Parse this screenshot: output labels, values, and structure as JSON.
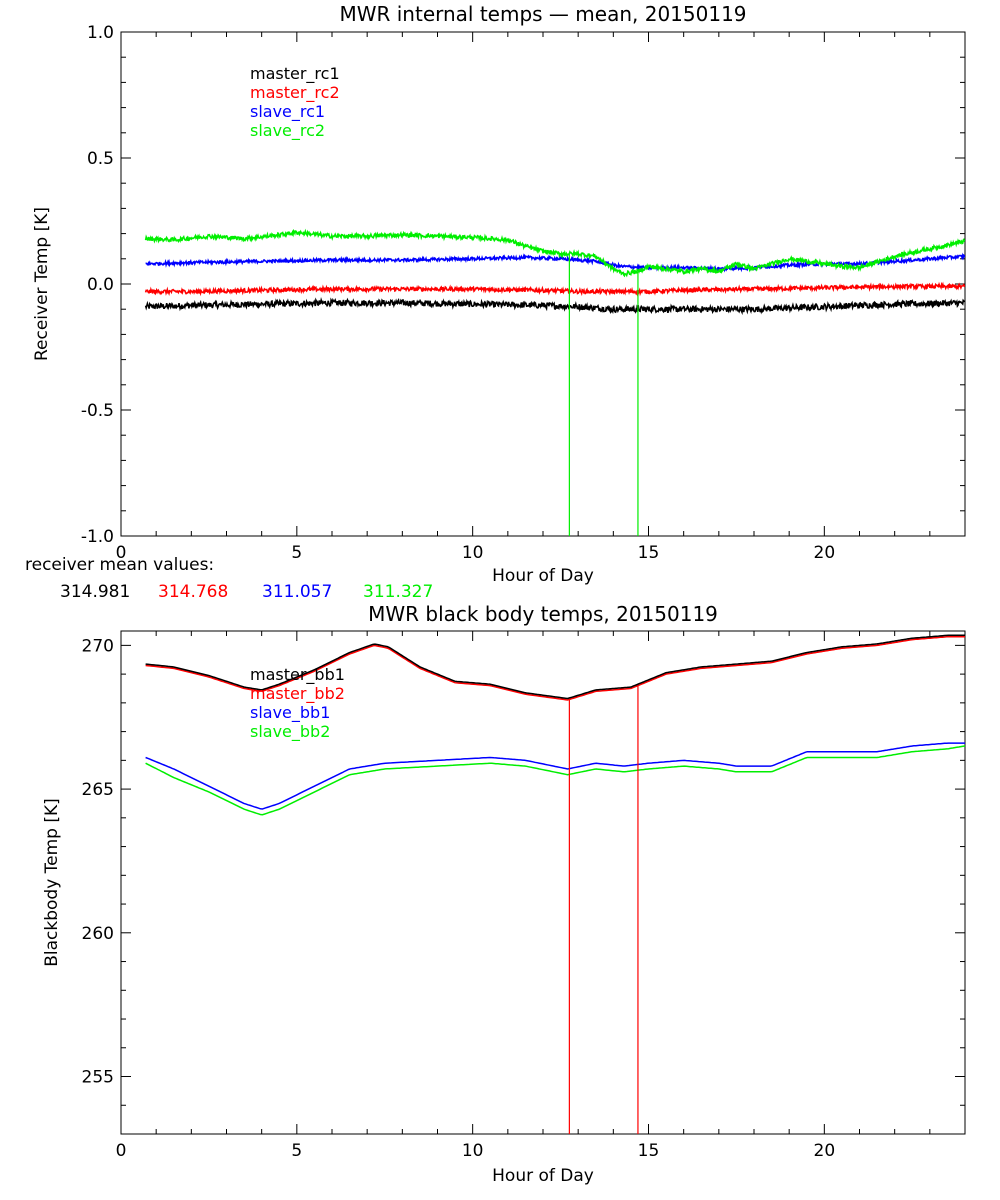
{
  "chart_data": [
    {
      "type": "line",
      "title": "MWR internal temps — mean, 20150119",
      "xlabel": "Hour of Day",
      "ylabel": "Receiver Temp [K]",
      "xlim": [
        0,
        24
      ],
      "ylim": [
        -1.0,
        1.0
      ],
      "xticks": [
        "0",
        "5",
        "10",
        "15",
        "20"
      ],
      "yticks": [
        "1.0",
        "0.5",
        "0.0",
        "-0.5",
        "-1.0"
      ],
      "legend_position": "top-left",
      "series": [
        {
          "name": "master_rc1",
          "color": "#000000",
          "noise": 0.012,
          "spikes": [],
          "x": [
            0.7,
            2,
            4,
            6,
            8,
            10,
            12,
            13,
            14,
            15,
            16,
            18,
            20,
            22,
            24
          ],
          "y": [
            -0.09,
            -0.085,
            -0.08,
            -0.075,
            -0.075,
            -0.08,
            -0.085,
            -0.09,
            -0.1,
            -0.1,
            -0.1,
            -0.1,
            -0.09,
            -0.08,
            -0.075
          ]
        },
        {
          "name": "master_rc2",
          "color": "#ff0000",
          "noise": 0.008,
          "spikes": [],
          "x": [
            0.7,
            2,
            4,
            6,
            8,
            10,
            12,
            13,
            14,
            15,
            16,
            18,
            20,
            22,
            24
          ],
          "y": [
            -0.03,
            -0.03,
            -0.025,
            -0.02,
            -0.02,
            -0.02,
            -0.025,
            -0.03,
            -0.03,
            -0.03,
            -0.025,
            -0.02,
            -0.015,
            -0.01,
            -0.01
          ]
        },
        {
          "name": "slave_rc1",
          "color": "#0000ff",
          "noise": 0.006,
          "spikes": [],
          "x": [
            0.7,
            2,
            4,
            6,
            8,
            10,
            11.5,
            12.5,
            13.5,
            14.2,
            15,
            16,
            17,
            18,
            19,
            20,
            21,
            22,
            23,
            24
          ],
          "y": [
            0.08,
            0.085,
            0.09,
            0.095,
            0.095,
            0.1,
            0.105,
            0.1,
            0.09,
            0.07,
            0.065,
            0.065,
            0.06,
            0.065,
            0.075,
            0.08,
            0.08,
            0.09,
            0.1,
            0.11
          ]
        },
        {
          "name": "slave_rc2",
          "color": "#00ee00",
          "noise": 0.008,
          "spikes": [
            12.75,
            14.7
          ],
          "x": [
            0.7,
            1.5,
            2.5,
            3.5,
            4.5,
            5.0,
            6,
            7,
            8,
            9,
            10,
            11,
            11.5,
            12,
            12.5,
            13,
            13.5,
            14.0,
            14.3,
            14.7,
            15,
            15.5,
            16,
            16.5,
            17,
            17.5,
            18,
            18.5,
            19,
            19.5,
            20,
            20.5,
            21,
            22,
            23,
            24
          ],
          "y": [
            0.18,
            0.175,
            0.19,
            0.18,
            0.195,
            0.205,
            0.19,
            0.19,
            0.195,
            0.19,
            0.185,
            0.175,
            0.15,
            0.13,
            0.12,
            0.12,
            0.11,
            0.06,
            0.04,
            0.05,
            0.07,
            0.06,
            0.05,
            0.06,
            0.05,
            0.08,
            0.06,
            0.08,
            0.1,
            0.09,
            0.08,
            0.07,
            0.065,
            0.11,
            0.14,
            0.17
          ]
        }
      ],
      "note_label": "receiver mean values:",
      "note_values": [
        {
          "text": "314.981",
          "color": "#000000"
        },
        {
          "text": "314.768",
          "color": "#ff0000"
        },
        {
          "text": "311.057",
          "color": "#0000ff"
        },
        {
          "text": "311.327",
          "color": "#00ee00"
        }
      ]
    },
    {
      "type": "line",
      "title": "MWR black body temps, 20150119",
      "xlabel": "Hour of Day",
      "ylabel": "Blackbody Temp [K]",
      "xlim": [
        0,
        24
      ],
      "ylim": [
        253,
        270.5
      ],
      "xticks": [
        "0",
        "5",
        "10",
        "15",
        "20"
      ],
      "yticks": [
        "270",
        "265",
        "260",
        "255"
      ],
      "legend_position": "top-left",
      "series": [
        {
          "name": "slave_bb1",
          "color": "#0000ff",
          "noise": 0,
          "spikes": [],
          "x": [
            0.7,
            1.5,
            2.5,
            3.5,
            4.0,
            4.5,
            5.5,
            6.5,
            7.5,
            9,
            10.5,
            11.5,
            12.7,
            13.5,
            14.3,
            15,
            16,
            17,
            17.5,
            18.5,
            19.5,
            20.5,
            21.5,
            22.5,
            23.5,
            24
          ],
          "y": [
            266.1,
            265.7,
            265.1,
            264.5,
            264.3,
            264.5,
            265.1,
            265.7,
            265.9,
            266.0,
            266.1,
            266.0,
            265.7,
            265.9,
            265.8,
            265.9,
            266.0,
            265.9,
            265.8,
            265.8,
            266.3,
            266.3,
            266.3,
            266.5,
            266.6,
            266.6
          ]
        },
        {
          "name": "slave_bb2",
          "color": "#00ee00",
          "noise": 0,
          "spikes": [],
          "x": [
            0.7,
            1.5,
            2.5,
            3.5,
            4.0,
            4.5,
            5.5,
            6.5,
            7.5,
            9,
            10.5,
            11.5,
            12.7,
            13.5,
            14.3,
            15,
            16,
            17,
            17.5,
            18.5,
            19.5,
            20.5,
            21.5,
            22.5,
            23.5,
            24
          ],
          "y": [
            265.9,
            265.4,
            264.9,
            264.3,
            264.1,
            264.3,
            264.9,
            265.5,
            265.7,
            265.8,
            265.9,
            265.8,
            265.5,
            265.7,
            265.6,
            265.7,
            265.8,
            265.7,
            265.6,
            265.6,
            266.1,
            266.1,
            266.1,
            266.3,
            266.4,
            266.5
          ]
        },
        {
          "name": "master_bb2",
          "color": "#ff0000",
          "noise": 0,
          "spikes": [
            12.75,
            14.7
          ],
          "x": [
            0.7,
            1.5,
            2.5,
            3.5,
            4.0,
            4.5,
            5.5,
            6.5,
            7.2,
            7.6,
            8.5,
            9.5,
            10.5,
            11.5,
            12.7,
            13.5,
            14.5,
            15.5,
            16.5,
            17.5,
            18.5,
            19.5,
            20.5,
            21.5,
            22.5,
            23.5,
            24
          ],
          "y": [
            269.3,
            269.2,
            268.9,
            268.5,
            268.4,
            268.6,
            269.1,
            269.7,
            270.0,
            269.9,
            269.2,
            268.7,
            268.6,
            268.3,
            268.1,
            268.4,
            268.5,
            269.0,
            269.2,
            269.3,
            269.4,
            269.7,
            269.9,
            270.0,
            270.2,
            270.3,
            270.3
          ]
        },
        {
          "name": "master_bb1",
          "color": "#000000",
          "noise": 0,
          "spikes": [],
          "x": [
            0.7,
            1.5,
            2.5,
            3.5,
            4.0,
            4.5,
            5.5,
            6.5,
            7.2,
            7.6,
            8.5,
            9.5,
            10.5,
            11.5,
            12.7,
            13.5,
            14.5,
            15.5,
            16.5,
            17.5,
            18.5,
            19.5,
            20.5,
            21.5,
            22.5,
            23.5,
            24
          ],
          "y": [
            269.35,
            269.25,
            268.95,
            268.55,
            268.45,
            268.65,
            269.15,
            269.75,
            270.05,
            269.95,
            269.25,
            268.75,
            268.65,
            268.35,
            268.15,
            268.45,
            268.55,
            269.05,
            269.25,
            269.35,
            269.45,
            269.75,
            269.95,
            270.05,
            270.25,
            270.35,
            270.35
          ]
        }
      ],
      "legend_order": [
        "master_bb1",
        "master_bb2",
        "slave_bb1",
        "slave_bb2"
      ]
    }
  ]
}
